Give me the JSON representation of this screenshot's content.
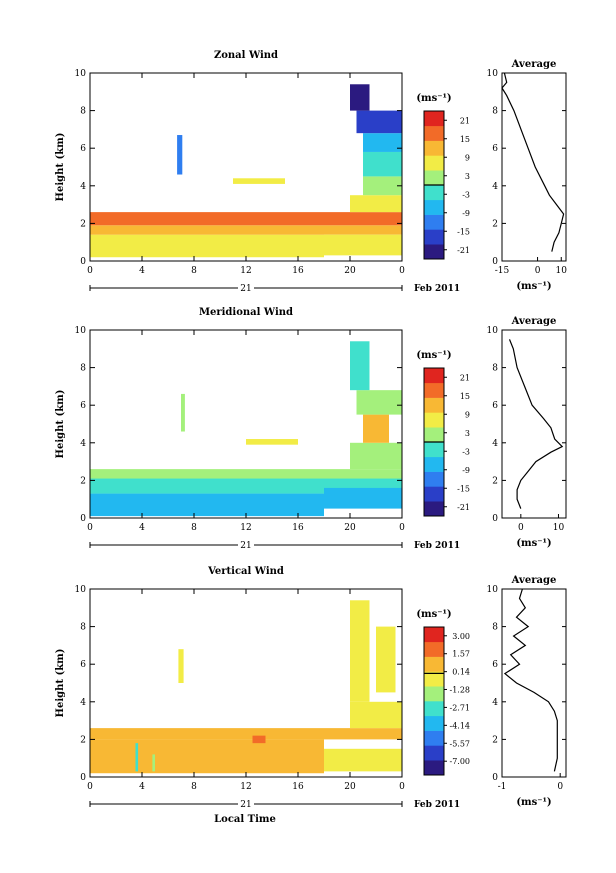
{
  "figure": {
    "time_axis_label": "Local Time"
  },
  "chart_data": [
    {
      "type": "heatmap",
      "title": "Zonal Wind",
      "ylabel": "Height (km)",
      "xlim": [
        0,
        24
      ],
      "ylim": [
        0,
        10
      ],
      "x_ticks": [
        "0",
        "4",
        "8",
        "12",
        "16",
        "20",
        "0"
      ],
      "y_ticks": [
        "0",
        "2",
        "4",
        "6",
        "8",
        "10"
      ],
      "date_label": "21",
      "month_label": "Feb 2011",
      "colorbar": {
        "unit": "(ms⁻¹)",
        "range": [
          -24,
          24
        ],
        "tick_values": [
          21,
          15,
          9,
          3,
          -3,
          -9,
          -15,
          -21
        ],
        "tick_labels": [
          "21",
          "15",
          "9",
          "3",
          "-3",
          "-9",
          "-15",
          "-21"
        ]
      },
      "cells": [
        {
          "t0": 0,
          "t1": 18,
          "h0": 0.2,
          "h1": 1.4,
          "v": 8
        },
        {
          "t0": 0,
          "t1": 24,
          "h0": 1.4,
          "h1": 1.9,
          "v": 11
        },
        {
          "t0": 0,
          "t1": 24,
          "h0": 1.9,
          "h1": 2.6,
          "v": 15
        },
        {
          "t0": 18,
          "t1": 24,
          "h0": 0.3,
          "h1": 1.4,
          "v": 5
        },
        {
          "t0": 20,
          "t1": 24,
          "h0": 2.6,
          "h1": 3.5,
          "v": 6
        },
        {
          "t0": 21,
          "t1": 24,
          "h0": 3.5,
          "h1": 4.5,
          "v": 4
        },
        {
          "t0": 21,
          "t1": 24,
          "h0": 4.5,
          "h1": 5.8,
          "v": -3
        },
        {
          "t0": 21,
          "t1": 24,
          "h0": 5.8,
          "h1": 6.8,
          "v": -9
        },
        {
          "t0": 20.5,
          "t1": 24,
          "h0": 6.8,
          "h1": 8,
          "v": -15
        },
        {
          "t0": 20,
          "t1": 21.5,
          "h0": 8,
          "h1": 9.4,
          "v": -21
        },
        {
          "t0": 6.7,
          "t1": 7.1,
          "h0": 4.6,
          "h1": 6.7,
          "v": -12
        },
        {
          "t0": 11,
          "t1": 15,
          "h0": 4.1,
          "h1": 4.4,
          "v": 5
        }
      ],
      "average": {
        "xlim": [
          -15,
          12
        ],
        "x_ticks": [
          "-15",
          "0",
          "10"
        ],
        "x_tick_values": [
          -15,
          0,
          10
        ],
        "xlabel": "(ms⁻¹)",
        "title": "Average",
        "profile": [
          {
            "h": 0.5,
            "v": 6
          },
          {
            "h": 1.0,
            "v": 7
          },
          {
            "h": 1.5,
            "v": 9
          },
          {
            "h": 2.0,
            "v": 10
          },
          {
            "h": 2.5,
            "v": 11
          },
          {
            "h": 3.0,
            "v": 8
          },
          {
            "h": 3.5,
            "v": 5
          },
          {
            "h": 4.0,
            "v": 3
          },
          {
            "h": 5.0,
            "v": -1
          },
          {
            "h": 6.0,
            "v": -4
          },
          {
            "h": 7.0,
            "v": -7
          },
          {
            "h": 8.0,
            "v": -10
          },
          {
            "h": 8.8,
            "v": -13
          },
          {
            "h": 9.2,
            "v": -15
          },
          {
            "h": 9.5,
            "v": -13
          },
          {
            "h": 10.0,
            "v": -14
          }
        ]
      }
    },
    {
      "type": "heatmap",
      "title": "Meridional Wind",
      "ylabel": "Height (km)",
      "xlim": [
        0,
        24
      ],
      "ylim": [
        0,
        10
      ],
      "x_ticks": [
        "0",
        "4",
        "8",
        "12",
        "16",
        "20",
        "0"
      ],
      "y_ticks": [
        "0",
        "2",
        "4",
        "6",
        "8",
        "10"
      ],
      "date_label": "21",
      "month_label": "Feb 2011",
      "colorbar": {
        "unit": "(ms⁻¹)",
        "range": [
          -24,
          24
        ],
        "tick_values": [
          21,
          15,
          9,
          3,
          -3,
          -9,
          -15,
          -21
        ],
        "tick_labels": [
          "21",
          "15",
          "9",
          "3",
          "-3",
          "-9",
          "-15",
          "-21"
        ]
      },
      "cells": [
        {
          "t0": 0,
          "t1": 18,
          "h0": 0.1,
          "h1": 1.3,
          "v": -6
        },
        {
          "t0": 0,
          "t1": 24,
          "h0": 1.3,
          "h1": 2.1,
          "v": -3
        },
        {
          "t0": 0,
          "t1": 24,
          "h0": 2.1,
          "h1": 2.6,
          "v": 4
        },
        {
          "t0": 18,
          "t1": 24,
          "h0": 0.5,
          "h1": 1.6,
          "v": -9
        },
        {
          "t0": 20,
          "t1": 24,
          "h0": 2.6,
          "h1": 4.0,
          "v": 3
        },
        {
          "t0": 21,
          "t1": 23,
          "h0": 4.0,
          "h1": 5.5,
          "v": 11
        },
        {
          "t0": 20.5,
          "t1": 24,
          "h0": 5.5,
          "h1": 6.8,
          "v": 4
        },
        {
          "t0": 20,
          "t1": 21.5,
          "h0": 6.8,
          "h1": 9.4,
          "v": -4
        },
        {
          "t0": 7.0,
          "t1": 7.3,
          "h0": 4.6,
          "h1": 6.6,
          "v": 4
        },
        {
          "t0": 12,
          "t1": 16,
          "h0": 3.9,
          "h1": 4.2,
          "v": 5
        }
      ],
      "average": {
        "xlim": [
          -5,
          12
        ],
        "x_ticks": [
          "0",
          "10"
        ],
        "x_tick_values": [
          0,
          10
        ],
        "xlabel": "(ms⁻¹)",
        "title": "Average",
        "profile": [
          {
            "h": 0.5,
            "v": 0
          },
          {
            "h": 1.0,
            "v": -1
          },
          {
            "h": 1.5,
            "v": -1
          },
          {
            "h": 2.0,
            "v": 0
          },
          {
            "h": 2.5,
            "v": 2
          },
          {
            "h": 3.0,
            "v": 4
          },
          {
            "h": 3.5,
            "v": 8
          },
          {
            "h": 3.8,
            "v": 11
          },
          {
            "h": 4.2,
            "v": 9
          },
          {
            "h": 4.8,
            "v": 8
          },
          {
            "h": 5.3,
            "v": 6
          },
          {
            "h": 6.0,
            "v": 3
          },
          {
            "h": 7.0,
            "v": 1
          },
          {
            "h": 8.0,
            "v": -1
          },
          {
            "h": 9.0,
            "v": -2
          },
          {
            "h": 9.5,
            "v": -3
          }
        ]
      }
    },
    {
      "type": "heatmap",
      "title": "Vertical Wind",
      "ylabel": "Height (km)",
      "xlabel": "Local Time",
      "xlim": [
        0,
        24
      ],
      "ylim": [
        0,
        10
      ],
      "x_ticks": [
        "0",
        "4",
        "8",
        "12",
        "16",
        "20",
        "0"
      ],
      "y_ticks": [
        "0",
        "2",
        "4",
        "6",
        "8",
        "10"
      ],
      "date_label": "21",
      "month_label": "Feb 2011",
      "colorbar": {
        "unit": "(ms⁻¹)",
        "range": [
          -8.1,
          3.7
        ],
        "tick_values": [
          3.0,
          1.57,
          0.14,
          -1.28,
          -2.71,
          -4.14,
          -5.57,
          -7.0
        ],
        "tick_labels": [
          "3.00",
          "1.57",
          "0.14",
          "-1.28",
          "-2.71",
          "-4.14",
          "-5.57",
          "-7.00"
        ]
      },
      "cells": [
        {
          "t0": 0,
          "t1": 18,
          "h0": 0.2,
          "h1": 2.0,
          "v": 0.8
        },
        {
          "t0": 0,
          "t1": 24,
          "h0": 2.0,
          "h1": 2.6,
          "v": 0.4
        },
        {
          "t0": 3.5,
          "t1": 3.7,
          "h0": 0.3,
          "h1": 1.8,
          "v": -2.5
        },
        {
          "t0": 4.8,
          "t1": 5.0,
          "h0": 0.3,
          "h1": 1.2,
          "v": -2.0
        },
        {
          "t0": 12.5,
          "t1": 13.5,
          "h0": 1.8,
          "h1": 2.2,
          "v": 1.6
        },
        {
          "t0": 18,
          "t1": 24,
          "h0": 0.3,
          "h1": 1.5,
          "v": -0.4
        },
        {
          "t0": 20,
          "t1": 24,
          "h0": 2.6,
          "h1": 4.0,
          "v": -0.6
        },
        {
          "t0": 20,
          "t1": 21.5,
          "h0": 4.0,
          "h1": 9.4,
          "v": -0.8
        },
        {
          "t0": 22,
          "t1": 23.5,
          "h0": 4.5,
          "h1": 8.0,
          "v": -0.6
        },
        {
          "t0": 6.8,
          "t1": 7.2,
          "h0": 5.0,
          "h1": 6.8,
          "v": -0.3
        }
      ],
      "average": {
        "xlim": [
          -1,
          0.1
        ],
        "x_ticks": [
          "-1",
          "0"
        ],
        "x_tick_values": [
          -1,
          0
        ],
        "xlabel": "(ms⁻¹)",
        "title": "Average",
        "profile": [
          {
            "h": 0.3,
            "v": -0.1
          },
          {
            "h": 1.0,
            "v": -0.05
          },
          {
            "h": 2.0,
            "v": -0.05
          },
          {
            "h": 3.0,
            "v": -0.05
          },
          {
            "h": 3.5,
            "v": -0.1
          },
          {
            "h": 4.0,
            "v": -0.2
          },
          {
            "h": 4.5,
            "v": -0.45
          },
          {
            "h": 5.0,
            "v": -0.75
          },
          {
            "h": 5.5,
            "v": -0.95
          },
          {
            "h": 6.0,
            "v": -0.7
          },
          {
            "h": 6.5,
            "v": -0.85
          },
          {
            "h": 7.0,
            "v": -0.6
          },
          {
            "h": 7.5,
            "v": -0.8
          },
          {
            "h": 8.0,
            "v": -0.55
          },
          {
            "h": 8.5,
            "v": -0.75
          },
          {
            "h": 9.0,
            "v": -0.6
          },
          {
            "h": 9.5,
            "v": -0.7
          },
          {
            "h": 10.0,
            "v": -0.65
          }
        ]
      }
    }
  ]
}
